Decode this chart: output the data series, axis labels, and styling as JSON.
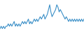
{
  "values": [
    4,
    5,
    4,
    5,
    4,
    5,
    5,
    6,
    5,
    6,
    5,
    6,
    7,
    5,
    6,
    5,
    6,
    5,
    6,
    7,
    6,
    7,
    6,
    7,
    8,
    6,
    7,
    6,
    7,
    8,
    7,
    8,
    7,
    8,
    9,
    8,
    9,
    10,
    8,
    9,
    10,
    12,
    14,
    11,
    9,
    10,
    11,
    12,
    14,
    13,
    11,
    12,
    11,
    10,
    9,
    8,
    9,
    8,
    7,
    8,
    7,
    8,
    7,
    8,
    7,
    8,
    7,
    8,
    7,
    8,
    7,
    8
  ],
  "line_color": "#3a8fc7",
  "bg_color": "#ffffff",
  "linewidth": 0.8
}
